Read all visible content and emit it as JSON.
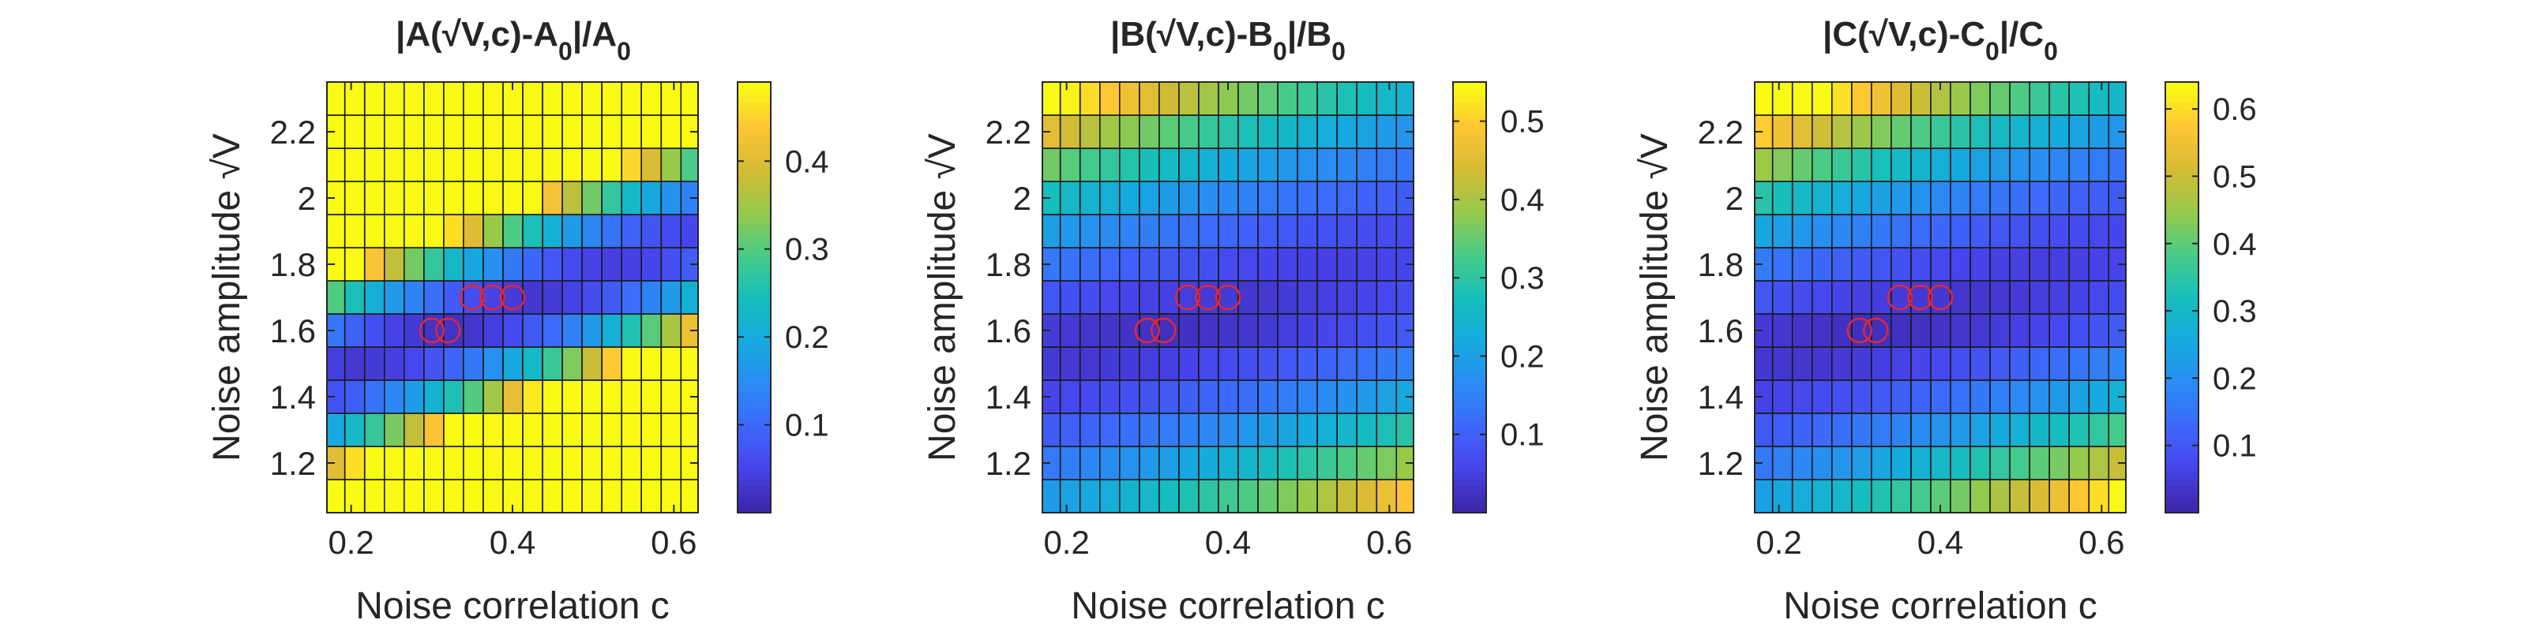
{
  "chart_data": [
    {
      "type": "heatmap",
      "title": "|A(√V,c)-A₀|/A₀",
      "title_parts": [
        "|A(",
        "√",
        "V,c)-A",
        "0",
        "|/A",
        "0"
      ],
      "xlabel": "Noise correlation c",
      "ylabel": "Noise amplitude √V",
      "xlim": [
        0.17,
        0.63
      ],
      "ylim": [
        1.05,
        2.35
      ],
      "xticks": [
        0.2,
        0.4,
        0.6
      ],
      "yticks": [
        1.2,
        1.4,
        1.6,
        1.8,
        2.0,
        2.2
      ],
      "xtick_labels": [
        "0.2",
        "0.4",
        "0.6"
      ],
      "ytick_labels": [
        "1.2",
        "1.4",
        "1.6",
        "1.8",
        "2",
        "2.2"
      ],
      "grid_x": {
        "start": 0.18,
        "step": 0.0245,
        "count": 19
      },
      "grid_y": {
        "start": 1.1,
        "step": 0.1,
        "count": 13
      },
      "color_scale": {
        "min": 0.0,
        "max": 0.49,
        "ticks": [
          0.1,
          0.2,
          0.3,
          0.4
        ],
        "tick_labels": [
          "0.1",
          "0.2",
          "0.3",
          "0.4"
        ],
        "colormap": "parula"
      },
      "valley": {
        "base": 0.02,
        "slope_x": 4.0,
        "slope_y": 0.38,
        "wx": 0.4,
        "c0": 0.32,
        "v0": 1.6,
        "k": 1.05
      },
      "markers": [
        {
          "c": 0.3,
          "v": 1.6
        },
        {
          "c": 0.32,
          "v": 1.6
        },
        {
          "c": 0.35,
          "v": 1.7
        },
        {
          "c": 0.375,
          "v": 1.7
        },
        {
          "c": 0.4,
          "v": 1.7
        }
      ]
    },
    {
      "type": "heatmap",
      "title": "|B(√V,c)-B₀|/B₀",
      "title_parts": [
        "|B(",
        "√",
        "V,c)-B",
        "0",
        "|/B",
        "0"
      ],
      "xlabel": "Noise correlation c",
      "ylabel": "Noise amplitude √V",
      "xlim": [
        0.17,
        0.63
      ],
      "ylim": [
        1.05,
        2.35
      ],
      "xticks": [
        0.2,
        0.4,
        0.6
      ],
      "yticks": [
        1.2,
        1.4,
        1.6,
        1.8,
        2.0,
        2.2
      ],
      "xtick_labels": [
        "0.2",
        "0.4",
        "0.6"
      ],
      "ytick_labels": [
        "1.2",
        "1.4",
        "1.6",
        "1.8",
        "2",
        "2.2"
      ],
      "grid_x": {
        "start": 0.18,
        "step": 0.0245,
        "count": 19
      },
      "grid_y": {
        "start": 1.1,
        "step": 0.1,
        "count": 13
      },
      "color_scale": {
        "min": 0.0,
        "max": 0.55,
        "ticks": [
          0.1,
          0.2,
          0.3,
          0.4,
          0.5
        ],
        "tick_labels": [
          "0.1",
          "0.2",
          "0.3",
          "0.4",
          "0.5"
        ],
        "colormap": "parula"
      },
      "valley": {
        "base": 0.02,
        "slope_x": 0.5,
        "slope_y": 0.55,
        "wx": 0.25,
        "c0": 0.32,
        "v0": 1.6,
        "k": 1.05
      },
      "markers": [
        {
          "c": 0.3,
          "v": 1.6
        },
        {
          "c": 0.32,
          "v": 1.6
        },
        {
          "c": 0.35,
          "v": 1.7
        },
        {
          "c": 0.375,
          "v": 1.7
        },
        {
          "c": 0.4,
          "v": 1.7
        }
      ]
    },
    {
      "type": "heatmap",
      "title": "|C(√V,c)-C₀|/C₀",
      "title_parts": [
        "|C(",
        "√",
        "V,c)-C",
        "0",
        "|/C",
        "0"
      ],
      "xlabel": "Noise correlation c",
      "ylabel": "Noise amplitude √V",
      "xlim": [
        0.17,
        0.63
      ],
      "ylim": [
        1.05,
        2.35
      ],
      "xticks": [
        0.2,
        0.4,
        0.6
      ],
      "yticks": [
        1.2,
        1.4,
        1.6,
        1.8,
        2.0,
        2.2
      ],
      "xtick_labels": [
        "0.2",
        "0.4",
        "0.6"
      ],
      "ytick_labels": [
        "1.2",
        "1.4",
        "1.6",
        "1.8",
        "2",
        "2.2"
      ],
      "grid_x": {
        "start": 0.18,
        "step": 0.0245,
        "count": 19
      },
      "grid_y": {
        "start": 1.1,
        "step": 0.1,
        "count": 13
      },
      "color_scale": {
        "min": 0.0,
        "max": 0.64,
        "ticks": [
          0.1,
          0.2,
          0.3,
          0.4,
          0.5,
          0.6
        ],
        "tick_labels": [
          "0.1",
          "0.2",
          "0.3",
          "0.4",
          "0.5",
          "0.6"
        ],
        "colormap": "parula"
      },
      "valley": {
        "base": 0.02,
        "slope_x": 0.7,
        "slope_y": 0.62,
        "wx": 0.25,
        "c0": 0.32,
        "v0": 1.6,
        "k": 1.05
      },
      "markers": [
        {
          "c": 0.3,
          "v": 1.6
        },
        {
          "c": 0.32,
          "v": 1.6
        },
        {
          "c": 0.35,
          "v": 1.7
        },
        {
          "c": 0.375,
          "v": 1.7
        },
        {
          "c": 0.4,
          "v": 1.7
        }
      ]
    }
  ],
  "colors": {
    "grid_line": "#1a1a1a",
    "marker": "#e8262f",
    "axis": "#262626"
  }
}
